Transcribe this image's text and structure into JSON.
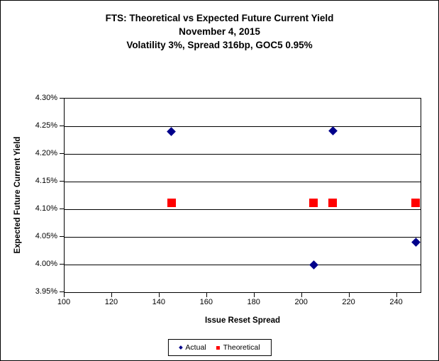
{
  "chart_data": {
    "type": "scatter",
    "title": "FTS: Theoretical vs Expected Future Current Yield",
    "subtitle1": "November 4, 2015",
    "subtitle2": "Volatility 3%, Spread 316bp, GOC5 0.95%",
    "xlabel": "Issue Reset Spread",
    "ylabel": "Expected Future Current Yield",
    "xlim": [
      100,
      250
    ],
    "ylim": [
      3.95,
      4.3
    ],
    "grid": "horizontal-only",
    "legend_position": "bottom",
    "x_ticks": [
      {
        "value": 100,
        "label": "100"
      },
      {
        "value": 120,
        "label": "120"
      },
      {
        "value": 140,
        "label": "140"
      },
      {
        "value": 160,
        "label": "160"
      },
      {
        "value": 180,
        "label": "180"
      },
      {
        "value": 200,
        "label": "200"
      },
      {
        "value": 220,
        "label": "220"
      },
      {
        "value": 240,
        "label": "240"
      }
    ],
    "y_ticks": [
      {
        "value": 4.3,
        "label": "4.30%"
      },
      {
        "value": 4.25,
        "label": "4.25%"
      },
      {
        "value": 4.2,
        "label": "4.20%"
      },
      {
        "value": 4.15,
        "label": "4.15%"
      },
      {
        "value": 4.1,
        "label": "4.10%"
      },
      {
        "value": 4.05,
        "label": "4.05%"
      },
      {
        "value": 4.0,
        "label": "4.00%"
      },
      {
        "value": 3.95,
        "label": "3.95%"
      }
    ],
    "series": [
      {
        "name": "Actual",
        "marker": "diamond",
        "color": "#00008B",
        "points": [
          [
            145,
            4.24
          ],
          [
            205,
            4.0
          ],
          [
            213,
            4.242
          ],
          [
            248,
            4.04
          ]
        ]
      },
      {
        "name": "Theoretical",
        "marker": "square",
        "color": "#FF0000",
        "points": [
          [
            145,
            4.111
          ],
          [
            205,
            4.111
          ],
          [
            213,
            4.111
          ],
          [
            248,
            4.111
          ]
        ]
      }
    ],
    "colors": {
      "actual": "#00008B",
      "theoretical": "#FF0000",
      "axis": "#000000",
      "background": "#FFFFFF"
    }
  }
}
